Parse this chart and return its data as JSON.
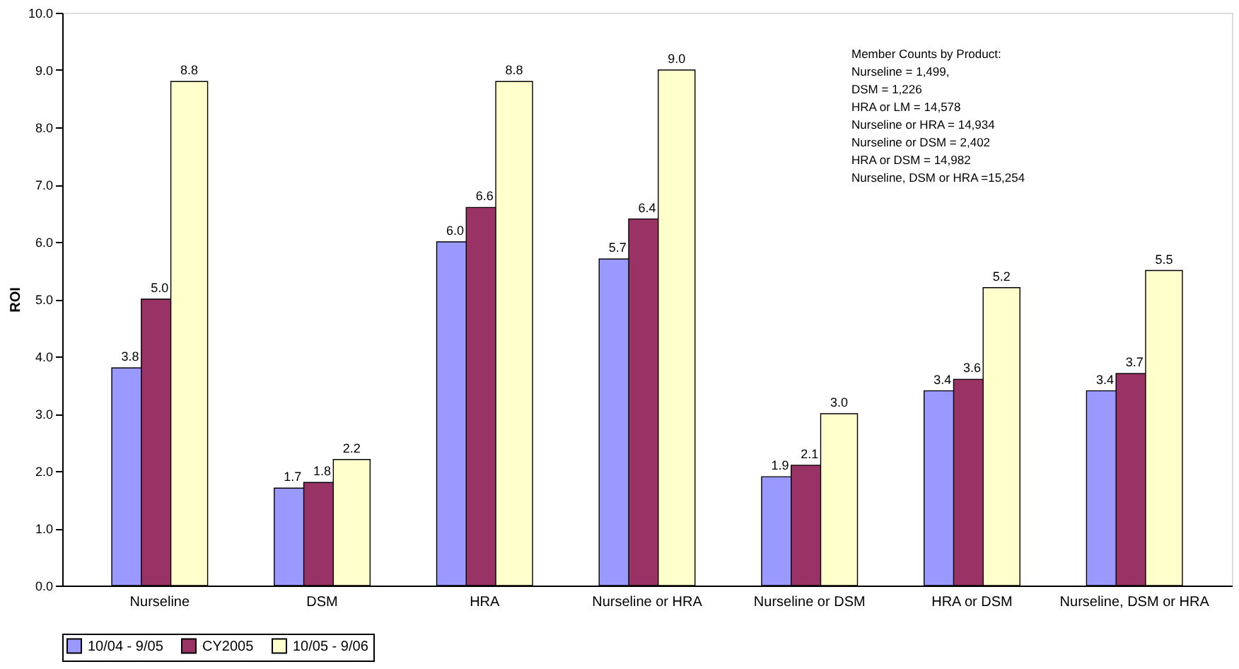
{
  "chart_data": {
    "type": "bar",
    "categories": [
      "Nurseline",
      "DSM",
      "HRA",
      "Nurseline or HRA",
      "Nurseline or DSM",
      "HRA or DSM",
      "Nurseline, DSM or HRA"
    ],
    "series": [
      {
        "name": "10/04 - 9/05",
        "color": "#9999ff",
        "values": [
          3.8,
          1.7,
          6.0,
          5.7,
          1.9,
          3.4,
          3.4
        ],
        "value_labels": [
          "3.8",
          "1.7",
          "6.0",
          "5.7",
          "1.9",
          "3.4",
          "3.4"
        ]
      },
      {
        "name": "CY2005",
        "color": "#993366",
        "values": [
          5.0,
          1.8,
          6.6,
          6.4,
          2.1,
          3.6,
          3.7
        ],
        "value_labels": [
          "5.0",
          "1.8",
          "6.6",
          "6.4",
          "2.1",
          "3.6",
          "3.7"
        ]
      },
      {
        "name": "10/05 - 9/06",
        "color": "#ffffcc",
        "values": [
          8.8,
          2.2,
          8.8,
          9.0,
          3.0,
          5.2,
          5.5
        ],
        "value_labels": [
          "8.8",
          "2.2",
          "8.8",
          "9.0",
          "3.0",
          "5.2",
          "5.5"
        ]
      }
    ],
    "ylabel": "ROI",
    "ylim": [
      0,
      10
    ],
    "yticks": [
      {
        "value": 0,
        "label": "0.0"
      },
      {
        "value": 1,
        "label": "1.0"
      },
      {
        "value": 2,
        "label": "2.0"
      },
      {
        "value": 3,
        "label": "3.0"
      },
      {
        "value": 4,
        "label": "4.0"
      },
      {
        "value": 5,
        "label": "5.0"
      },
      {
        "value": 6,
        "label": "6.0"
      },
      {
        "value": 7,
        "label": "7.0"
      },
      {
        "value": 8,
        "label": "8.0"
      },
      {
        "value": 9,
        "label": "9.0"
      },
      {
        "value": 10,
        "label": "10.0"
      }
    ],
    "annotations": [
      "Member Counts by Product:",
      "Nurseline = 1,499,",
      "DSM  = 1,226",
      "HRA or LM = 14,578",
      "Nurseline or HRA = 14,934",
      "Nurseline or DSM = 2,402",
      "HRA or DSM = 14,982",
      "Nurseline, DSM or HRA  =15,254"
    ],
    "grid": false,
    "legend": "bottom"
  }
}
